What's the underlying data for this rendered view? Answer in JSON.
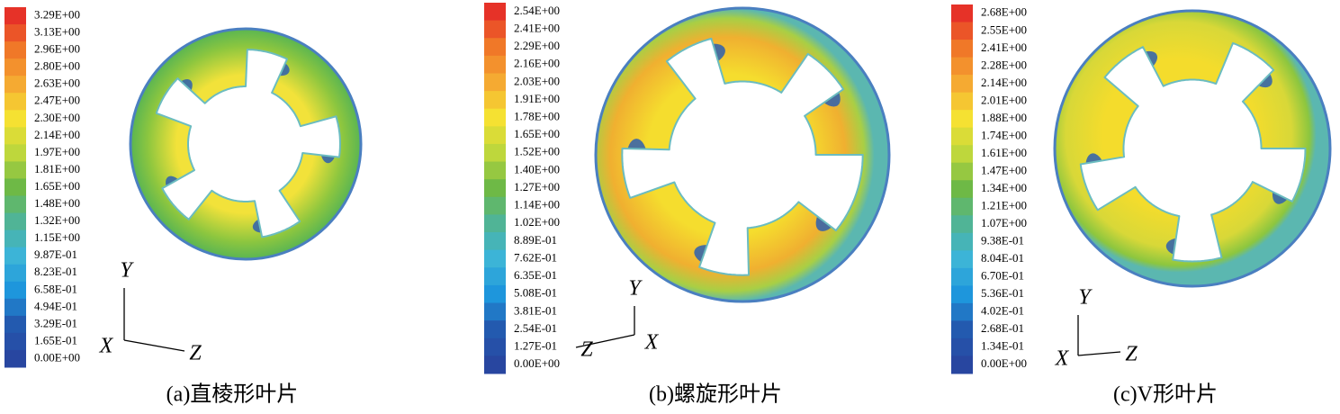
{
  "panels": [
    {
      "legend": [
        "3.29E+00",
        "3.13E+00",
        "2.96E+00",
        "2.80E+00",
        "2.63E+00",
        "2.47E+00",
        "2.30E+00",
        "2.14E+00",
        "1.97E+00",
        "1.81E+00",
        "1.65E+00",
        "1.48E+00",
        "1.32E+00",
        "1.15E+00",
        "9.87E-01",
        "8.23E-01",
        "6.58E-01",
        "4.94E-01",
        "3.29E-01",
        "1.65E-01",
        "0.00E+00"
      ],
      "axes": {
        "y": "Y",
        "x": "X",
        "z": "Z"
      },
      "caption": "(a)直棱形叶片"
    },
    {
      "legend": [
        "2.54E+00",
        "2.41E+00",
        "2.29E+00",
        "2.16E+00",
        "2.03E+00",
        "1.91E+00",
        "1.78E+00",
        "1.65E+00",
        "1.52E+00",
        "1.40E+00",
        "1.27E+00",
        "1.14E+00",
        "1.02E+00",
        "8.89E-01",
        "7.62E-01",
        "6.35E-01",
        "5.08E-01",
        "3.81E-01",
        "2.54E-01",
        "1.27E-01",
        "0.00E+00"
      ],
      "axes": {
        "y": "Y",
        "x": "X",
        "z": "Z"
      },
      "caption": "(b)螺旋形叶片"
    },
    {
      "legend": [
        "2.68E+00",
        "2.55E+00",
        "2.41E+00",
        "2.28E+00",
        "2.14E+00",
        "2.01E+00",
        "1.88E+00",
        "1.74E+00",
        "1.61E+00",
        "1.47E+00",
        "1.34E+00",
        "1.21E+00",
        "1.07E+00",
        "9.38E-01",
        "8.04E-01",
        "6.70E-01",
        "5.36E-01",
        "4.02E-01",
        "2.68E-01",
        "1.34E-01",
        "0.00E+00"
      ],
      "axes": {
        "y": "Y",
        "x": "X",
        "z": "Z"
      },
      "caption": "(c)V形叶片"
    }
  ]
}
